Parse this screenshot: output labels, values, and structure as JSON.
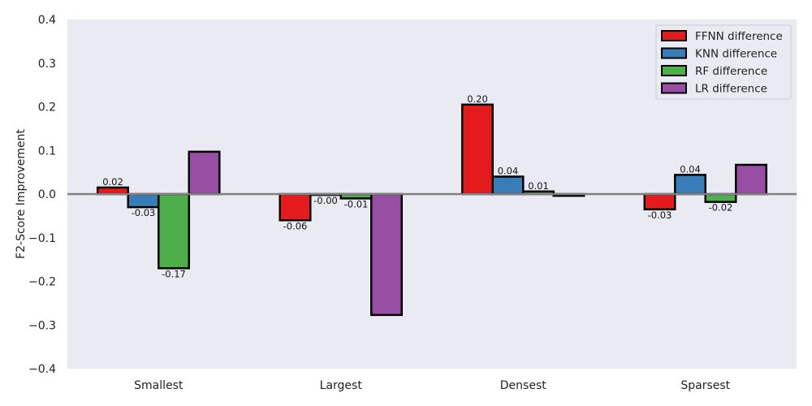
{
  "chart_data": {
    "type": "bar",
    "title": "",
    "xlabel": "",
    "ylabel": "F2-Score Improvement",
    "ylim": [
      -0.4,
      0.4
    ],
    "yticks": [
      -0.4,
      -0.3,
      -0.2,
      -0.1,
      0.0,
      0.1,
      0.2,
      0.3,
      0.4
    ],
    "ytick_labels": [
      "−0.4",
      "−0.3",
      "−0.2",
      "−0.1",
      "0.0",
      "0.1",
      "0.2",
      "0.3",
      "0.4"
    ],
    "categories": [
      "Smallest",
      "Largest",
      "Densest",
      "Sparsest"
    ],
    "grid": false,
    "legend_position": "top-right",
    "series": [
      {
        "name": "FFNN difference",
        "color": "#e41a1c",
        "values": [
          0.015,
          -0.06,
          0.205,
          -0.035
        ],
        "labels": [
          "0.02",
          "-0.06",
          "0.20",
          "-0.03"
        ]
      },
      {
        "name": "KNN difference",
        "color": "#377eb8",
        "values": [
          -0.03,
          -0.002,
          0.04,
          0.044
        ],
        "labels": [
          "-0.03",
          "-0.00",
          "0.04",
          "0.04"
        ]
      },
      {
        "name": "RF difference",
        "color": "#4daf4a",
        "values": [
          -0.17,
          -0.01,
          0.006,
          -0.018
        ],
        "labels": [
          "-0.17",
          "-0.01",
          "0.01",
          "-0.02"
        ]
      },
      {
        "name": "LR difference",
        "color": "#984ea3",
        "values": [
          0.097,
          -0.277,
          -0.004,
          0.067
        ],
        "labels": [
          "",
          "",
          "",
          ""
        ]
      }
    ]
  }
}
